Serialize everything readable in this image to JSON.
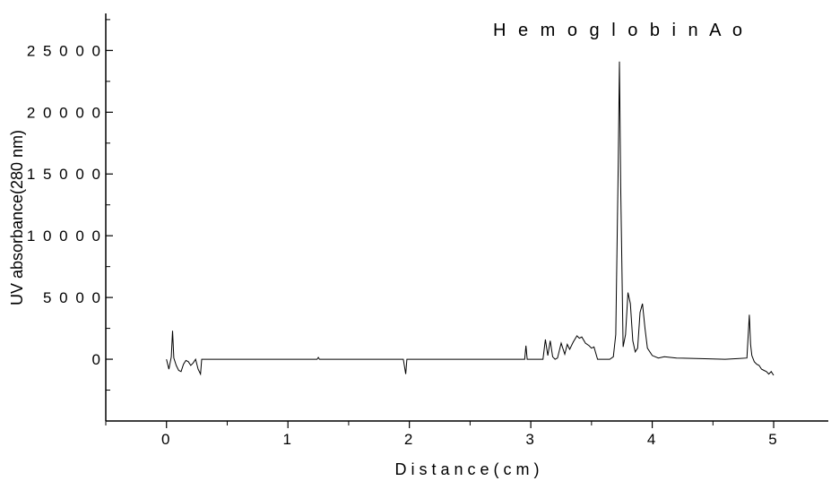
{
  "chart_data": {
    "type": "line",
    "title": "",
    "xlabel": "D i s t a n c e ( c m )",
    "ylabel": "UV absorbance(280 nm)",
    "xlim": [
      -0.5,
      5.45
    ],
    "ylim": [
      -5000,
      28000
    ],
    "x_ticks": [
      0,
      1,
      2,
      3,
      4,
      5
    ],
    "x_tick_labels": [
      "0",
      "1",
      "2",
      "3",
      "4",
      "5"
    ],
    "y_ticks": [
      0,
      5000,
      10000,
      15000,
      20000,
      25000
    ],
    "y_tick_labels": [
      "0",
      "5 0 0 0",
      "1 0 0 0 0",
      "1 5 0 0 0",
      "2 0 0 0 0",
      "2 5 0 0 0"
    ],
    "grid": false,
    "line_color": "#000000",
    "annotations": [
      {
        "text": "H e m o g l o b i n  A o",
        "x": 3.73,
        "y": 26200
      }
    ],
    "series": [
      {
        "x": [
          0.0,
          0.02,
          0.04,
          0.05,
          0.06,
          0.08,
          0.1,
          0.12,
          0.14,
          0.16,
          0.18,
          0.2,
          0.22,
          0.24,
          0.26,
          0.28,
          0.29,
          0.3,
          0.31,
          1.24,
          1.25,
          1.26,
          1.95,
          1.97,
          1.98,
          2.0,
          2.95,
          2.96,
          2.97,
          2.98,
          3.05,
          3.1,
          3.12,
          3.14,
          3.16,
          3.18,
          3.2,
          3.22,
          3.25,
          3.28,
          3.3,
          3.32,
          3.35,
          3.38,
          3.4,
          3.42,
          3.45,
          3.48,
          3.5,
          3.52,
          3.55,
          3.6,
          3.65,
          3.68,
          3.7,
          3.72,
          3.73,
          3.74,
          3.76,
          3.78,
          3.8,
          3.82,
          3.84,
          3.86,
          3.88,
          3.9,
          3.92,
          3.94,
          3.96,
          4.0,
          4.05,
          4.1,
          4.2,
          4.4,
          4.6,
          4.7,
          4.78,
          4.8,
          4.81,
          4.82,
          4.84,
          4.86,
          4.88,
          4.9,
          4.92,
          4.94,
          4.96,
          4.98,
          5.0
        ],
        "y": [
          0,
          -800,
          200,
          2300,
          100,
          -500,
          -900,
          -1000,
          -400,
          -100,
          -200,
          -500,
          -300,
          0,
          -800,
          -1200,
          0,
          0,
          0,
          0,
          150,
          0,
          0,
          -1200,
          0,
          0,
          0,
          1100,
          0,
          0,
          0,
          0,
          1600,
          300,
          1500,
          200,
          0,
          100,
          1300,
          400,
          1200,
          800,
          1400,
          1900,
          1700,
          1800,
          1300,
          1100,
          900,
          1000,
          0,
          0,
          0,
          200,
          2000,
          16000,
          24100,
          14000,
          1000,
          2000,
          5400,
          4500,
          1500,
          600,
          900,
          3800,
          4500,
          2500,
          900,
          300,
          100,
          200,
          100,
          50,
          0,
          50,
          100,
          3600,
          1200,
          300,
          -200,
          -400,
          -500,
          -800,
          -900,
          -1000,
          -1200,
          -1000,
          -1300
        ]
      }
    ]
  }
}
